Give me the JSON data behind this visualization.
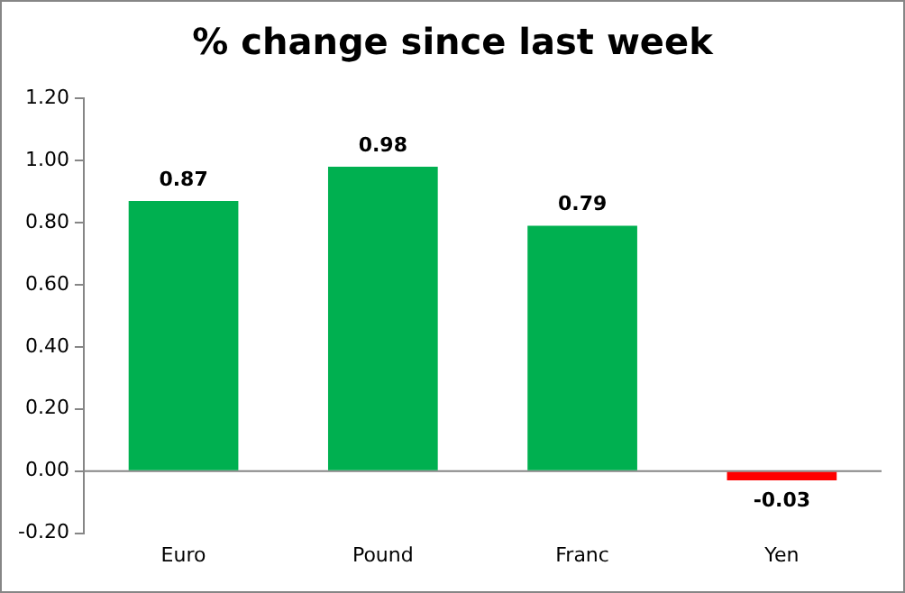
{
  "chart_data": {
    "type": "bar",
    "title": "% change since last week",
    "categories": [
      "Euro",
      "Pound",
      "Franc",
      "Yen"
    ],
    "values": [
      0.87,
      0.98,
      0.79,
      -0.03
    ],
    "colors": [
      "#00b050",
      "#00b050",
      "#00b050",
      "#ff0000"
    ],
    "ylim": [
      -0.2,
      1.2
    ],
    "yticks": [
      {
        "value": -0.2,
        "label": "-0.20"
      },
      {
        "value": 0,
        "label": "0.00"
      },
      {
        "value": 0.2,
        "label": "0.20"
      },
      {
        "value": 0.4,
        "label": "0.40"
      },
      {
        "value": 0.6,
        "label": "0.60"
      },
      {
        "value": 0.8,
        "label": "0.80"
      },
      {
        "value": 1,
        "label": "1.00"
      },
      {
        "value": 1.2,
        "label": "1.20"
      }
    ],
    "ref_lines": [
      {
        "axis": "y",
        "value": 0,
        "color": "#868686"
      }
    ],
    "data_labels": true,
    "grid": false,
    "legend": false
  }
}
